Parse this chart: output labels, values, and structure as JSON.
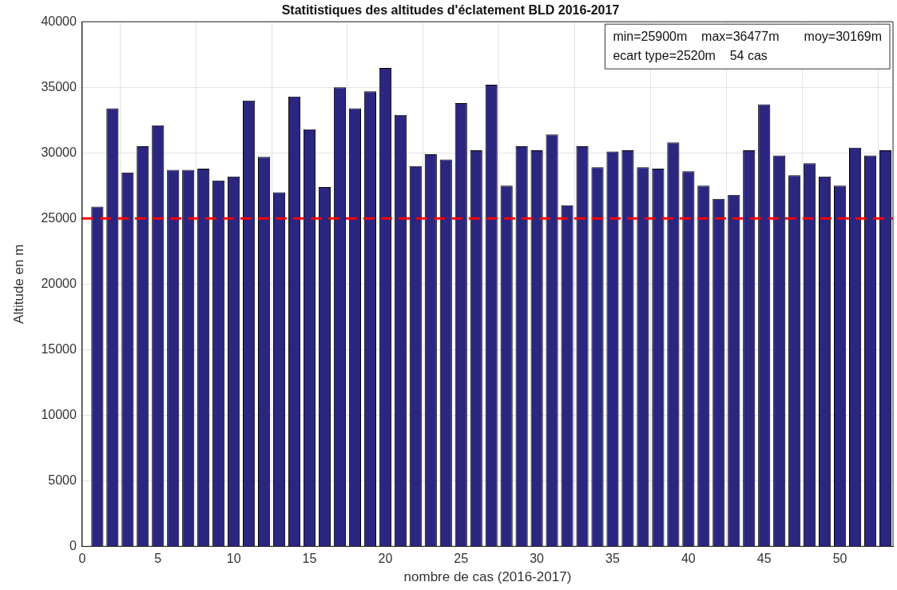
{
  "chart_data": {
    "type": "bar",
    "title": "Statitistiques des altitudes d'éclatement BLD 2016-2017",
    "xlabel": "nombre de cas (2016-2017)",
    "ylabel": "Altitude en m",
    "x": [
      1,
      2,
      3,
      4,
      5,
      6,
      7,
      8,
      9,
      10,
      11,
      12,
      13,
      14,
      15,
      16,
      17,
      18,
      19,
      20,
      21,
      22,
      23,
      24,
      25,
      26,
      27,
      28,
      29,
      30,
      31,
      32,
      33,
      34,
      35,
      36,
      37,
      38,
      39,
      40,
      41,
      42,
      43,
      44,
      45,
      46,
      47,
      48,
      49,
      50,
      51,
      52,
      53
    ],
    "values": [
      25900,
      33400,
      28500,
      30500,
      32100,
      28700,
      28700,
      28800,
      27900,
      28200,
      34000,
      29700,
      27000,
      34300,
      31800,
      27400,
      35000,
      33400,
      34700,
      36477,
      32900,
      29000,
      29900,
      29500,
      33800,
      30200,
      35200,
      27500,
      30500,
      30200,
      31400,
      26000,
      30500,
      28900,
      30100,
      30200,
      28900,
      28800,
      30800,
      28600,
      27500,
      26500,
      26800,
      30200,
      33700,
      29800,
      28300,
      29200,
      28200,
      27500,
      30400,
      29800,
      30200
    ],
    "color": "#2b2680",
    "xlim": [
      0,
      53.5
    ],
    "xticks": [
      0,
      5,
      10,
      15,
      20,
      25,
      30,
      35,
      40,
      45,
      50
    ],
    "ylim": [
      0,
      40000
    ],
    "yticks": [
      0,
      5000,
      10000,
      15000,
      20000,
      25000,
      30000,
      35000,
      40000
    ],
    "grid": true,
    "ref_lines": [
      {
        "axis": "y",
        "value": 25000,
        "color": "#ff0000",
        "line_style": "dashed"
      }
    ],
    "annotations": [
      "min=25900m    max=36477m       moy=30169m",
      "ecart type=2520m    54 cas"
    ]
  }
}
